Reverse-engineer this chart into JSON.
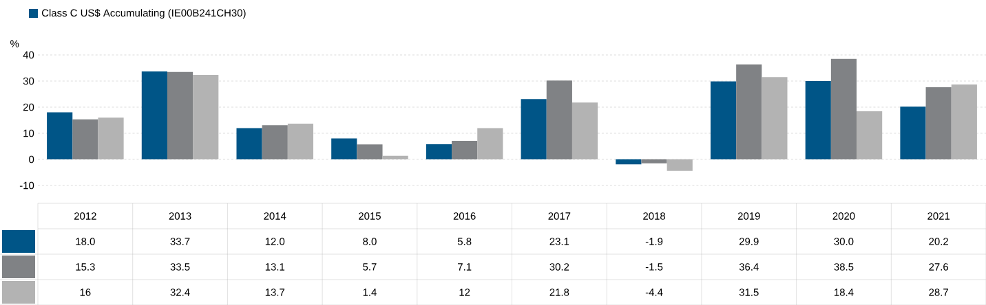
{
  "chart_data": {
    "type": "bar",
    "ylabel": "%",
    "categories": [
      "2012",
      "2013",
      "2014",
      "2015",
      "2016",
      "2017",
      "2018",
      "2019",
      "2020",
      "2021"
    ],
    "series": [
      {
        "name": "Class C US$ Accumulating (IE00B241CH30)",
        "color": "#005587",
        "values": [
          18.0,
          33.7,
          12.0,
          8.0,
          5.8,
          23.1,
          -1.9,
          29.9,
          30.0,
          20.2
        ],
        "value_labels": [
          "18.0",
          "33.7",
          "12.0",
          "8.0",
          "5.8",
          "23.1",
          "-1.9",
          "29.9",
          "30.0",
          "20.2"
        ]
      },
      {
        "color": "#808285",
        "values": [
          15.3,
          33.5,
          13.1,
          5.7,
          7.1,
          30.2,
          -1.5,
          36.4,
          38.5,
          27.6
        ],
        "value_labels": [
          "15.3",
          "33.5",
          "13.1",
          "5.7",
          "7.1",
          "30.2",
          "-1.5",
          "36.4",
          "38.5",
          "27.6"
        ]
      },
      {
        "color": "#b3b3b3",
        "values": [
          16,
          32.4,
          13.7,
          1.4,
          12,
          21.8,
          -4.4,
          31.5,
          18.4,
          28.7
        ],
        "value_labels": [
          "16",
          "32.4",
          "13.7",
          "1.4",
          "12",
          "21.8",
          "-4.4",
          "31.5",
          "18.4",
          "28.7"
        ]
      }
    ],
    "ylim": [
      -10,
      40
    ],
    "yticks": [
      -10,
      0,
      10,
      20,
      30,
      40
    ],
    "grid": "y",
    "legend": "top left"
  }
}
